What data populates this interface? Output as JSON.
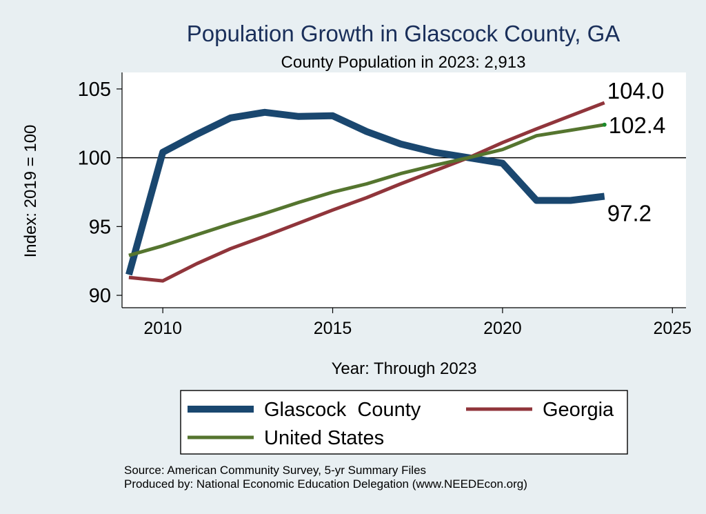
{
  "chart_data": {
    "type": "line",
    "title": "Population Growth in Glascock County, GA",
    "subtitle": "County Population in 2023: 2,913",
    "xlabel": "Year: Through 2023",
    "ylabel": "Index: 2019 = 100",
    "xlim": [
      2008.8,
      2025.4
    ],
    "ylim": [
      89.1,
      106.2
    ],
    "x_ticks": [
      "2010",
      "2015",
      "2020",
      "2025"
    ],
    "y_ticks": [
      "90",
      "95",
      "100",
      "105"
    ],
    "reference_line": 100,
    "x": [
      2009,
      2010,
      2011,
      2012,
      2013,
      2014,
      2015,
      2016,
      2017,
      2018,
      2019,
      2020,
      2021,
      2022,
      2023
    ],
    "series": [
      {
        "name": "Glascock  County",
        "color": "#1a476f",
        "values": [
          91.5,
          100.4,
          101.7,
          102.9,
          103.3,
          103.0,
          103.05,
          101.9,
          101.0,
          100.4,
          100.0,
          99.6,
          96.9,
          96.9,
          97.2
        ],
        "end_label": "97.2"
      },
      {
        "name": "Georgia",
        "color": "#90353b",
        "values": [
          91.3,
          91.05,
          92.3,
          93.4,
          94.3,
          95.25,
          96.2,
          97.1,
          98.1,
          99.05,
          100.0,
          101.1,
          102.1,
          103.05,
          104.0
        ],
        "end_label": "104.0"
      },
      {
        "name": "United States",
        "color": "#55752f",
        "values": [
          92.9,
          93.6,
          94.4,
          95.2,
          95.95,
          96.75,
          97.5,
          98.1,
          98.85,
          99.45,
          100.0,
          100.6,
          101.6,
          102.0,
          102.4
        ],
        "end_label": "102.4"
      }
    ],
    "legend": {
      "position": "bottom",
      "items": [
        "Glascock  County",
        "Georgia",
        "United States"
      ]
    }
  },
  "source": {
    "line1": "Source: American Community Survey, 5-yr Summary Files",
    "line2": "Produced by: National Economic Education Delegation (www.NEEDEcon.org)"
  },
  "colors": {
    "background": "#e8eff2",
    "plot_background": "#ffffff",
    "title_color": "#1a2f5a"
  }
}
